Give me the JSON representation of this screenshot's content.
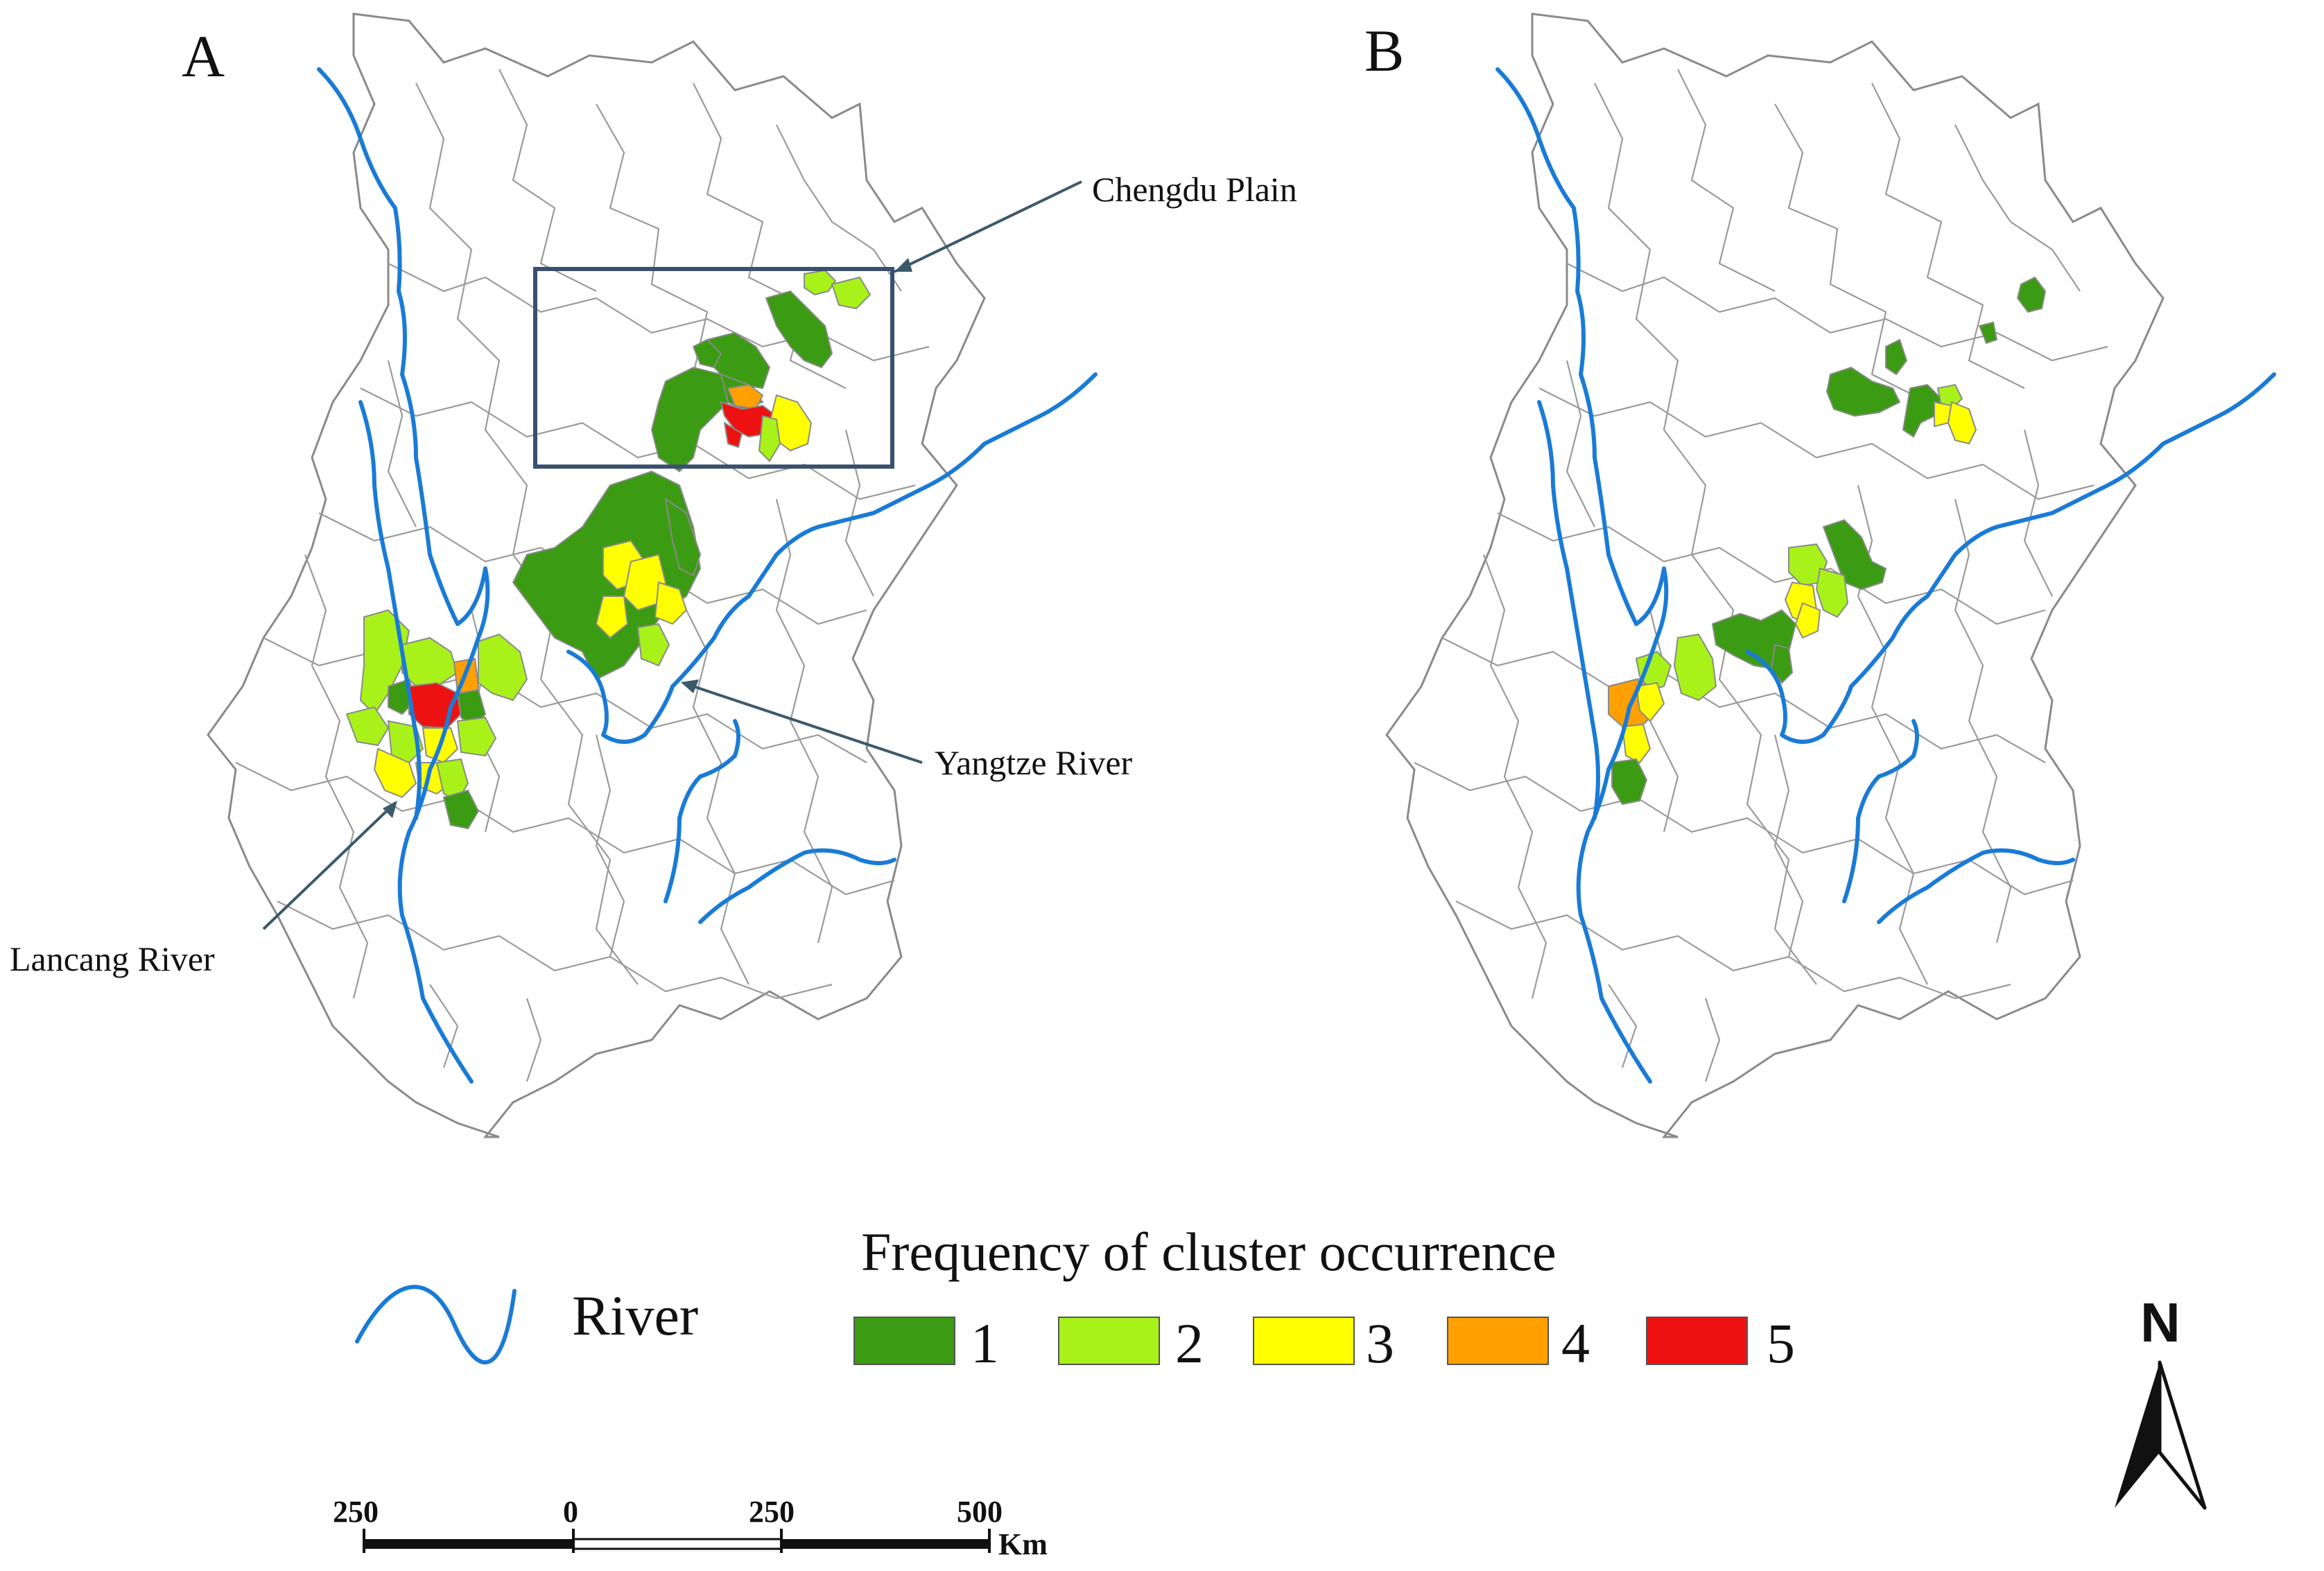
{
  "panels": [
    {
      "letter": "A"
    },
    {
      "letter": "B"
    }
  ],
  "annotations": {
    "chengdu": "Chengdu Plain",
    "yangtze": "Yangtze River",
    "lancang": "Lancang River"
  },
  "legend": {
    "title": "Frequency of cluster occurrence",
    "river_label": "River",
    "classes": [
      {
        "label": "1",
        "color": "#3b9b12"
      },
      {
        "label": "2",
        "color": "#a8f21a"
      },
      {
        "label": "3",
        "color": "#ffff00"
      },
      {
        "label": "4",
        "color": "#ffa000"
      },
      {
        "label": "5",
        "color": "#ee1111"
      }
    ]
  },
  "scale_bar": {
    "ticks": [
      "250",
      "0",
      "250",
      "500"
    ],
    "unit": "Km"
  },
  "north_arrow": {
    "label": "N"
  },
  "colors": {
    "river": "#1a7bd6",
    "boundary": "#8a8a8a",
    "inset_box": "#3a5070"
  }
}
